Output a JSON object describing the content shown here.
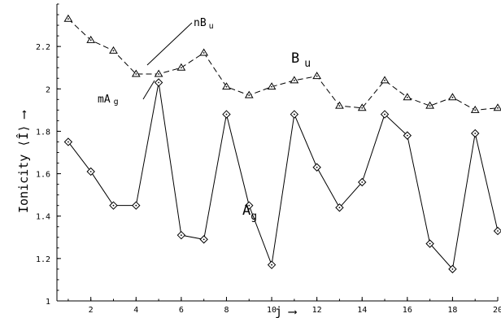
{
  "chart_data": {
    "type": "line",
    "xlabel": "j",
    "ylabel": "Ionicity ⟨Î⟩",
    "x": [
      1,
      2,
      3,
      4,
      5,
      6,
      7,
      8,
      9,
      10,
      11,
      12,
      13,
      14,
      15,
      16,
      17,
      18,
      19,
      20
    ],
    "xticks": [
      2,
      4,
      6,
      8,
      10,
      12,
      14,
      16,
      18,
      20
    ],
    "yticks": [
      1,
      1.2,
      1.4,
      1.6,
      1.8,
      2,
      2.2
    ],
    "xlim": [
      0.5,
      20
    ],
    "ylim": [
      1,
      2.4
    ],
    "grid": false,
    "series": [
      {
        "name": "Bu",
        "style": "dashed",
        "marker": "triangle",
        "values": [
          2.33,
          2.23,
          2.18,
          2.07,
          2.07,
          2.1,
          2.17,
          2.01,
          1.97,
          2.01,
          2.04,
          2.06,
          1.92,
          1.91,
          2.04,
          1.96,
          1.92,
          1.96,
          1.9,
          1.91
        ]
      },
      {
        "name": "Ag",
        "style": "solid",
        "marker": "diamond",
        "values": [
          1.75,
          1.61,
          1.45,
          1.45,
          2.03,
          1.31,
          1.29,
          1.88,
          1.45,
          1.17,
          1.88,
          1.63,
          1.44,
          1.56,
          1.88,
          1.78,
          1.27,
          1.15,
          1.79,
          1.33
        ]
      }
    ],
    "annotations": {
      "nBu": {
        "main": "nB",
        "sub": "u"
      },
      "Bu": {
        "main": "B",
        "sub": "u"
      },
      "mAg": {
        "main": "mA",
        "sub": "g"
      },
      "Ag": {
        "main": "A",
        "sub": "g"
      }
    },
    "xlabel_arrow": "⟶",
    "ylabel_arrow": "⟶"
  }
}
